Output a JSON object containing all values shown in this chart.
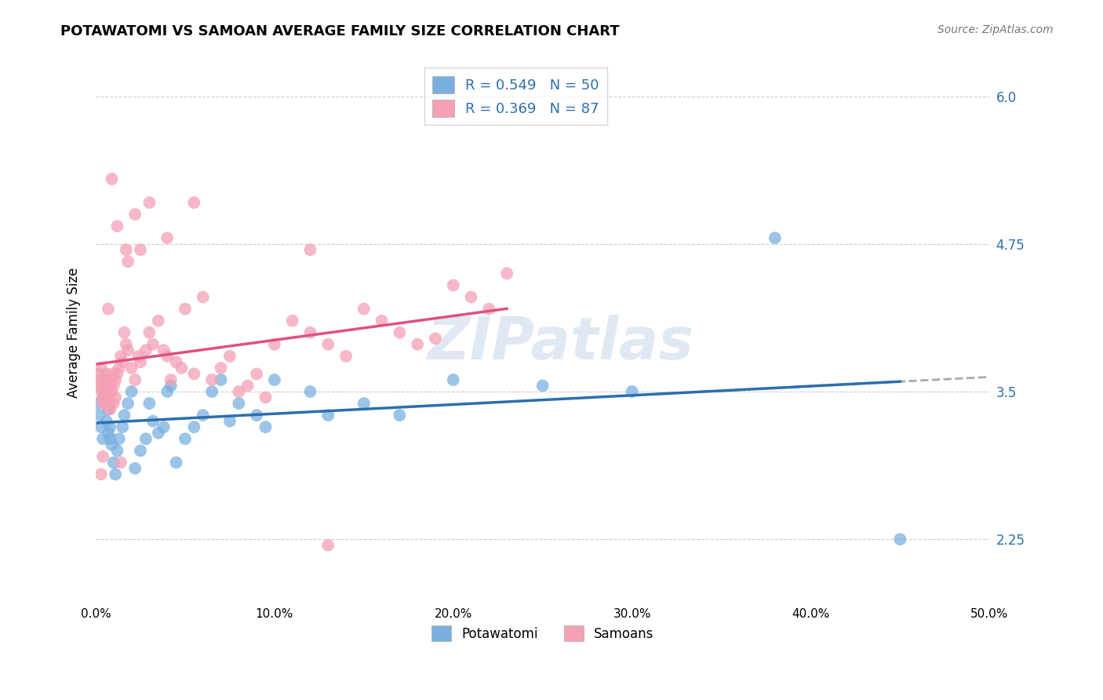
{
  "title": "POTAWATOMI VS SAMOAN AVERAGE FAMILY SIZE CORRELATION CHART",
  "source": "Source: ZipAtlas.com",
  "ylabel": "Average Family Size",
  "yticks": [
    2.25,
    3.5,
    4.75,
    6.0
  ],
  "xlim": [
    0.0,
    0.5
  ],
  "ylim": [
    1.7,
    6.3
  ],
  "watermark": "ZIPatlas",
  "blue_R": 0.549,
  "blue_N": 50,
  "pink_R": 0.369,
  "pink_N": 87,
  "blue_color": "#7ab0e0",
  "pink_color": "#f4a0b5",
  "blue_line_color": "#2c6fad",
  "pink_line_color": "#e05080",
  "legend_R_color": "#2c6fad",
  "blue_x": [
    0.001,
    0.002,
    0.003,
    0.004,
    0.005,
    0.005,
    0.006,
    0.006,
    0.007,
    0.007,
    0.008,
    0.008,
    0.009,
    0.01,
    0.011,
    0.012,
    0.013,
    0.015,
    0.016,
    0.018,
    0.02,
    0.022,
    0.025,
    0.028,
    0.03,
    0.032,
    0.035,
    0.038,
    0.04,
    0.042,
    0.045,
    0.05,
    0.055,
    0.06,
    0.065,
    0.07,
    0.075,
    0.08,
    0.09,
    0.095,
    0.1,
    0.12,
    0.13,
    0.15,
    0.17,
    0.2,
    0.25,
    0.3,
    0.38,
    0.45
  ],
  "blue_y": [
    3.4,
    3.3,
    3.2,
    3.1,
    3.5,
    3.6,
    3.45,
    3.25,
    3.15,
    3.35,
    3.2,
    3.1,
    3.05,
    2.9,
    2.8,
    3.0,
    3.1,
    3.2,
    3.3,
    3.4,
    3.5,
    2.85,
    3.0,
    3.1,
    3.4,
    3.25,
    3.15,
    3.2,
    3.5,
    3.55,
    2.9,
    3.1,
    3.2,
    3.3,
    3.5,
    3.6,
    3.25,
    3.4,
    3.3,
    3.2,
    3.6,
    3.5,
    3.3,
    3.4,
    3.3,
    3.6,
    3.55,
    3.5,
    4.8,
    2.25
  ],
  "pink_x": [
    0.001,
    0.002,
    0.002,
    0.003,
    0.003,
    0.004,
    0.004,
    0.004,
    0.005,
    0.005,
    0.005,
    0.006,
    0.006,
    0.006,
    0.007,
    0.007,
    0.007,
    0.008,
    0.008,
    0.008,
    0.009,
    0.009,
    0.01,
    0.01,
    0.011,
    0.011,
    0.012,
    0.013,
    0.014,
    0.015,
    0.016,
    0.017,
    0.018,
    0.02,
    0.022,
    0.024,
    0.025,
    0.028,
    0.03,
    0.032,
    0.035,
    0.038,
    0.04,
    0.042,
    0.045,
    0.048,
    0.05,
    0.055,
    0.06,
    0.065,
    0.07,
    0.075,
    0.08,
    0.085,
    0.09,
    0.095,
    0.1,
    0.11,
    0.12,
    0.13,
    0.14,
    0.15,
    0.16,
    0.17,
    0.18,
    0.19,
    0.2,
    0.21,
    0.22,
    0.23,
    0.025,
    0.018,
    0.04,
    0.055,
    0.03,
    0.012,
    0.022,
    0.017,
    0.009,
    0.007,
    0.006,
    0.008,
    0.003,
    0.004,
    0.014,
    0.12,
    0.13
  ],
  "pink_y": [
    3.6,
    3.55,
    3.65,
    3.7,
    3.5,
    3.45,
    3.55,
    3.4,
    3.6,
    3.5,
    3.45,
    3.55,
    3.65,
    3.4,
    3.6,
    3.5,
    3.45,
    3.55,
    3.6,
    3.4,
    3.65,
    3.5,
    3.55,
    3.4,
    3.6,
    3.45,
    3.65,
    3.7,
    3.8,
    3.75,
    4.0,
    3.9,
    3.85,
    3.7,
    3.6,
    3.8,
    3.75,
    3.85,
    4.0,
    3.9,
    4.1,
    3.85,
    3.8,
    3.6,
    3.75,
    3.7,
    4.2,
    3.65,
    4.3,
    3.6,
    3.7,
    3.8,
    3.5,
    3.55,
    3.65,
    3.45,
    3.9,
    4.1,
    4.0,
    3.9,
    3.8,
    4.2,
    4.1,
    4.0,
    3.9,
    3.95,
    4.4,
    4.3,
    4.2,
    4.5,
    4.7,
    4.6,
    4.8,
    5.1,
    5.1,
    4.9,
    5.0,
    4.7,
    5.3,
    4.2,
    3.55,
    3.35,
    2.8,
    2.95,
    2.9,
    4.7,
    2.2
  ]
}
